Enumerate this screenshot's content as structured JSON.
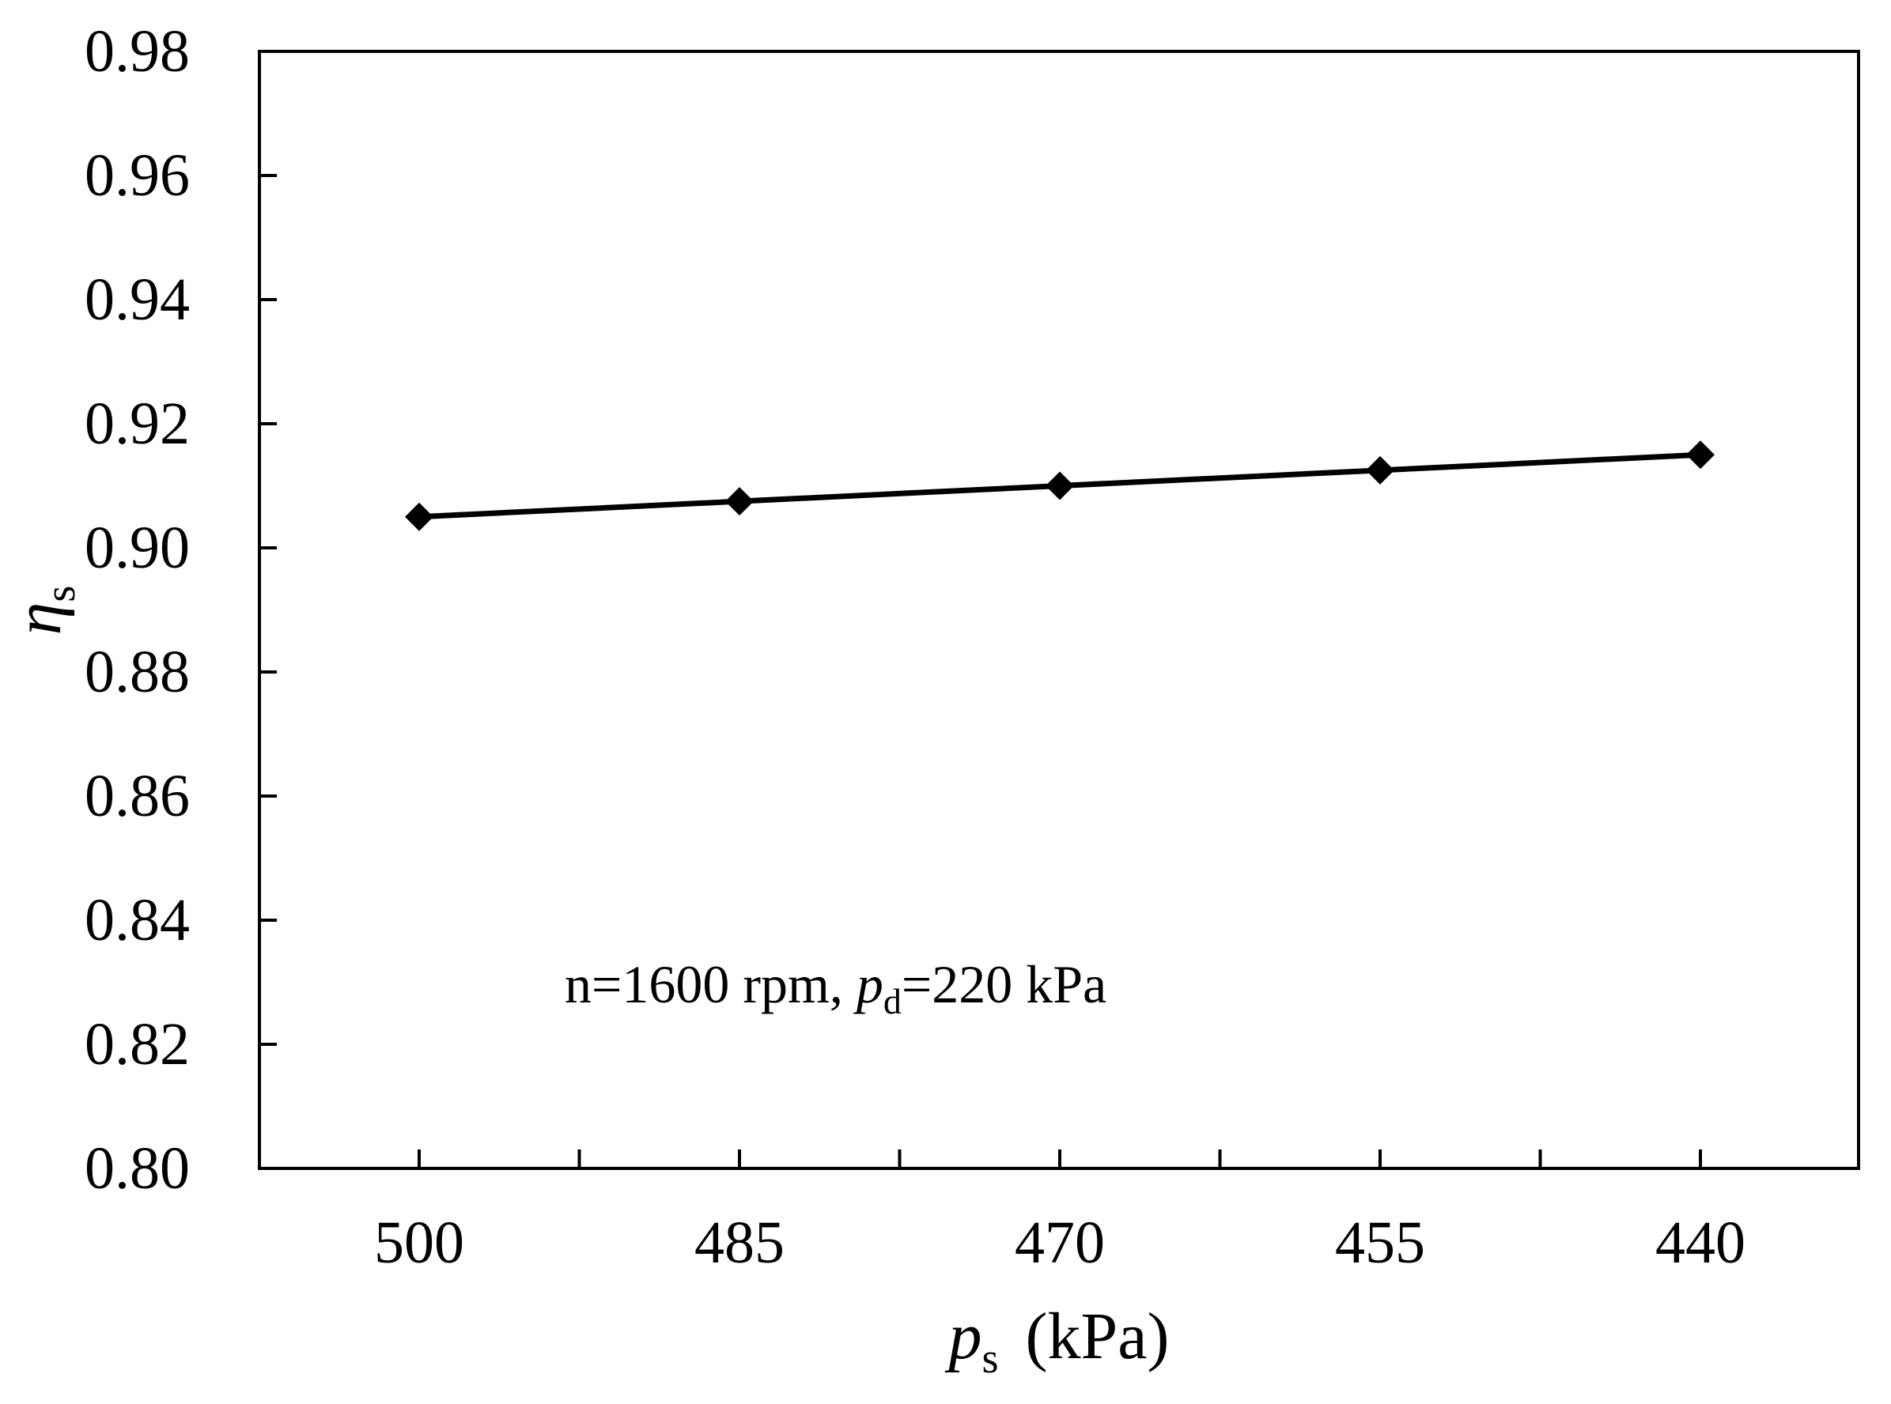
{
  "chart_data": {
    "type": "line",
    "title": "",
    "x": [
      "500",
      "485",
      "470",
      "455",
      "440"
    ],
    "series": [
      {
        "values": [
          0.905,
          0.9075,
          0.91,
          0.9125,
          0.915
        ]
      }
    ],
    "ylim": [
      0.8,
      0.98
    ],
    "yticks": [
      "0.80",
      "0.82",
      "0.84",
      "0.86",
      "0.88",
      "0.90",
      "0.92",
      "0.94",
      "0.96",
      "0.98"
    ],
    "xlabel": {
      "symbol": "p",
      "subscript": "s",
      "unit": "(kPa)"
    },
    "ylabel": {
      "symbol": "η",
      "subscript": "s"
    },
    "annotation": {
      "prefix": "n=1600 rpm, ",
      "symbol": "p",
      "subscript": "d",
      "suffix": "=220 kPa"
    },
    "marker": "diamond",
    "line_color": "#000000",
    "grid": false,
    "legend": "none"
  }
}
